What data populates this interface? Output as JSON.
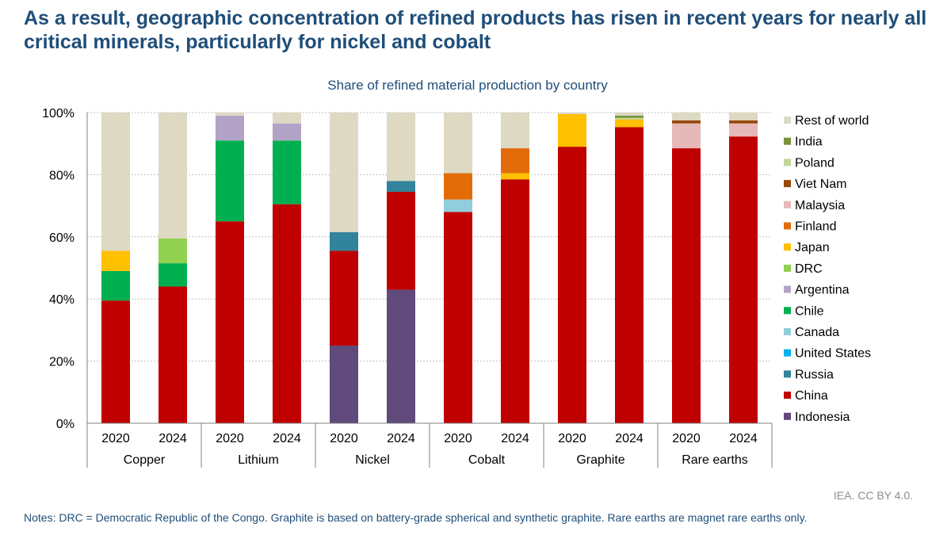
{
  "headline": "As a result, geographic concentration of refined products has risen in recent years for nearly all critical minerals, particularly for nickel and cobalt",
  "credit": "IEA. CC BY 4.0.",
  "notes": "Notes: DRC = Democratic Republic of the Congo. Graphite is based on battery-grade spherical and synthetic graphite. Rare earths are magnet rare earths only.",
  "chart_data": {
    "type": "stacked-bar",
    "title": "Share of refined material production by country",
    "ylim": [
      0,
      100
    ],
    "yticks": [
      "0%",
      "20%",
      "40%",
      "60%",
      "80%",
      "100%"
    ],
    "grid": true,
    "groups": [
      "Copper",
      "Lithium",
      "Nickel",
      "Cobalt",
      "Graphite",
      "Rare earths"
    ],
    "years": [
      "2020",
      "2024"
    ],
    "categories": [
      "Copper 2020",
      "Copper 2024",
      "Lithium 2020",
      "Lithium 2024",
      "Nickel 2020",
      "Nickel 2024",
      "Cobalt 2020",
      "Cobalt 2024",
      "Graphite 2020",
      "Graphite 2024",
      "Rare earths 2020",
      "Rare earths 2024"
    ],
    "series": [
      {
        "name": "Indonesia",
        "color": "#604a7b",
        "values": [
          0,
          0,
          0,
          0,
          25,
          43,
          0,
          0,
          0,
          0,
          0,
          0
        ]
      },
      {
        "name": "China",
        "color": "#c00000",
        "values": [
          39.5,
          44,
          65,
          70.5,
          30.5,
          31.5,
          68,
          78.5,
          89,
          95.3,
          88.5,
          92.3
        ]
      },
      {
        "name": "Russia",
        "color": "#31849b",
        "values": [
          0,
          0,
          0,
          0,
          6,
          3.5,
          0,
          0,
          0,
          0,
          0,
          0
        ]
      },
      {
        "name": "United States",
        "color": "#00b0f0",
        "values": [
          0,
          0,
          0,
          0,
          0,
          0,
          0,
          0,
          0,
          0,
          0,
          0
        ]
      },
      {
        "name": "Canada",
        "color": "#92cddc",
        "values": [
          0,
          0,
          0,
          0,
          0,
          0,
          4,
          0,
          0,
          0,
          0,
          0
        ]
      },
      {
        "name": "Chile",
        "color": "#00b050",
        "values": [
          9.5,
          7.5,
          26,
          20.5,
          0,
          0,
          0,
          0,
          0,
          0,
          0,
          0
        ]
      },
      {
        "name": "Argentina",
        "color": "#b3a2c7",
        "values": [
          0,
          0,
          8,
          5.5,
          0,
          0,
          0,
          0,
          0,
          0,
          0,
          0
        ]
      },
      {
        "name": "DRC",
        "color": "#92d050",
        "values": [
          0,
          8,
          0,
          0,
          0,
          0,
          0,
          0,
          0,
          0,
          0,
          0
        ]
      },
      {
        "name": "Japan",
        "color": "#ffc000",
        "values": [
          6.5,
          0,
          0,
          0,
          0,
          0,
          0,
          2,
          10.5,
          2.5,
          0,
          0
        ]
      },
      {
        "name": "Finland",
        "color": "#e36c09",
        "values": [
          0,
          0,
          0,
          0,
          0,
          0,
          8.5,
          8,
          0,
          0,
          0,
          0
        ]
      },
      {
        "name": "Malaysia",
        "color": "#e6b9b8",
        "values": [
          0,
          0,
          0,
          0,
          0,
          0,
          0,
          0,
          0,
          0,
          8,
          4.2
        ]
      },
      {
        "name": "Viet Nam",
        "color": "#984807",
        "values": [
          0,
          0,
          0,
          0,
          0,
          0,
          0,
          0,
          0,
          0,
          1,
          1
        ]
      },
      {
        "name": "Poland",
        "color": "#c4d79b",
        "values": [
          0,
          0,
          0,
          0,
          0,
          0,
          0,
          0,
          0,
          0.5,
          0,
          0
        ]
      },
      {
        "name": "India",
        "color": "#76923c",
        "values": [
          0,
          0,
          0,
          0,
          0,
          0,
          0,
          0,
          0,
          0.7,
          0,
          0
        ]
      },
      {
        "name": "Rest of world",
        "color": "#ddd9c3",
        "values": [
          44.5,
          40.5,
          1,
          3.5,
          38.5,
          22,
          19.5,
          11.5,
          0.5,
          1,
          2.5,
          2.5
        ]
      }
    ]
  }
}
